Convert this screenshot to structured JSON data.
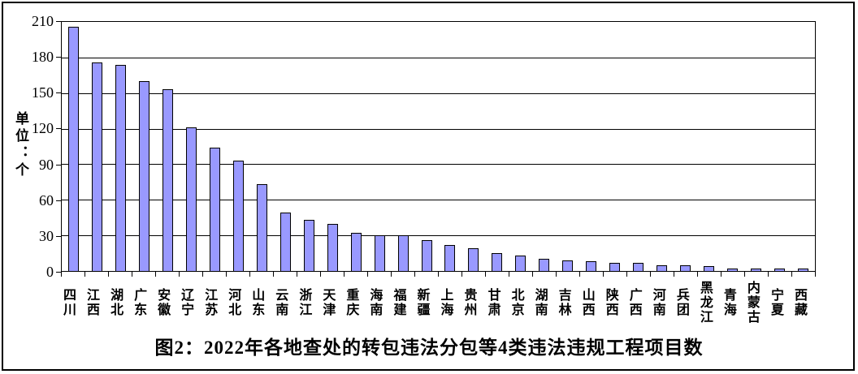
{
  "chart_data": {
    "type": "bar",
    "title": "图2：2022年各地查处的转包违法分包等4类违法违规工程项目数",
    "ylabel": "单位：个",
    "xlabel": "",
    "ylim": [
      0,
      210
    ],
    "yticks": [
      0,
      30,
      60,
      90,
      120,
      150,
      180,
      210
    ],
    "grid": "horizontal",
    "legend": "none",
    "bar_color": "#9999FF",
    "bar_border_color": "#000000",
    "categories": [
      "四川",
      "江西",
      "湖北",
      "广东",
      "安徽",
      "辽宁",
      "江苏",
      "河北",
      "山东",
      "云南",
      "浙江",
      "天津",
      "重庆",
      "海南",
      "福建",
      "新疆",
      "上海",
      "贵州",
      "甘肃",
      "北京",
      "湖南",
      "吉林",
      "山西",
      "陕西",
      "广西",
      "河南",
      "兵团",
      "黑龙江",
      "青海",
      "内蒙古",
      "宁夏",
      "西藏"
    ],
    "values": [
      206,
      176,
      174,
      160,
      153,
      121,
      104,
      93,
      73,
      49,
      43,
      40,
      32,
      30,
      30,
      26,
      22,
      19,
      15,
      13,
      10,
      9,
      8,
      7,
      7,
      5,
      5,
      4,
      2,
      2,
      2,
      2
    ]
  }
}
